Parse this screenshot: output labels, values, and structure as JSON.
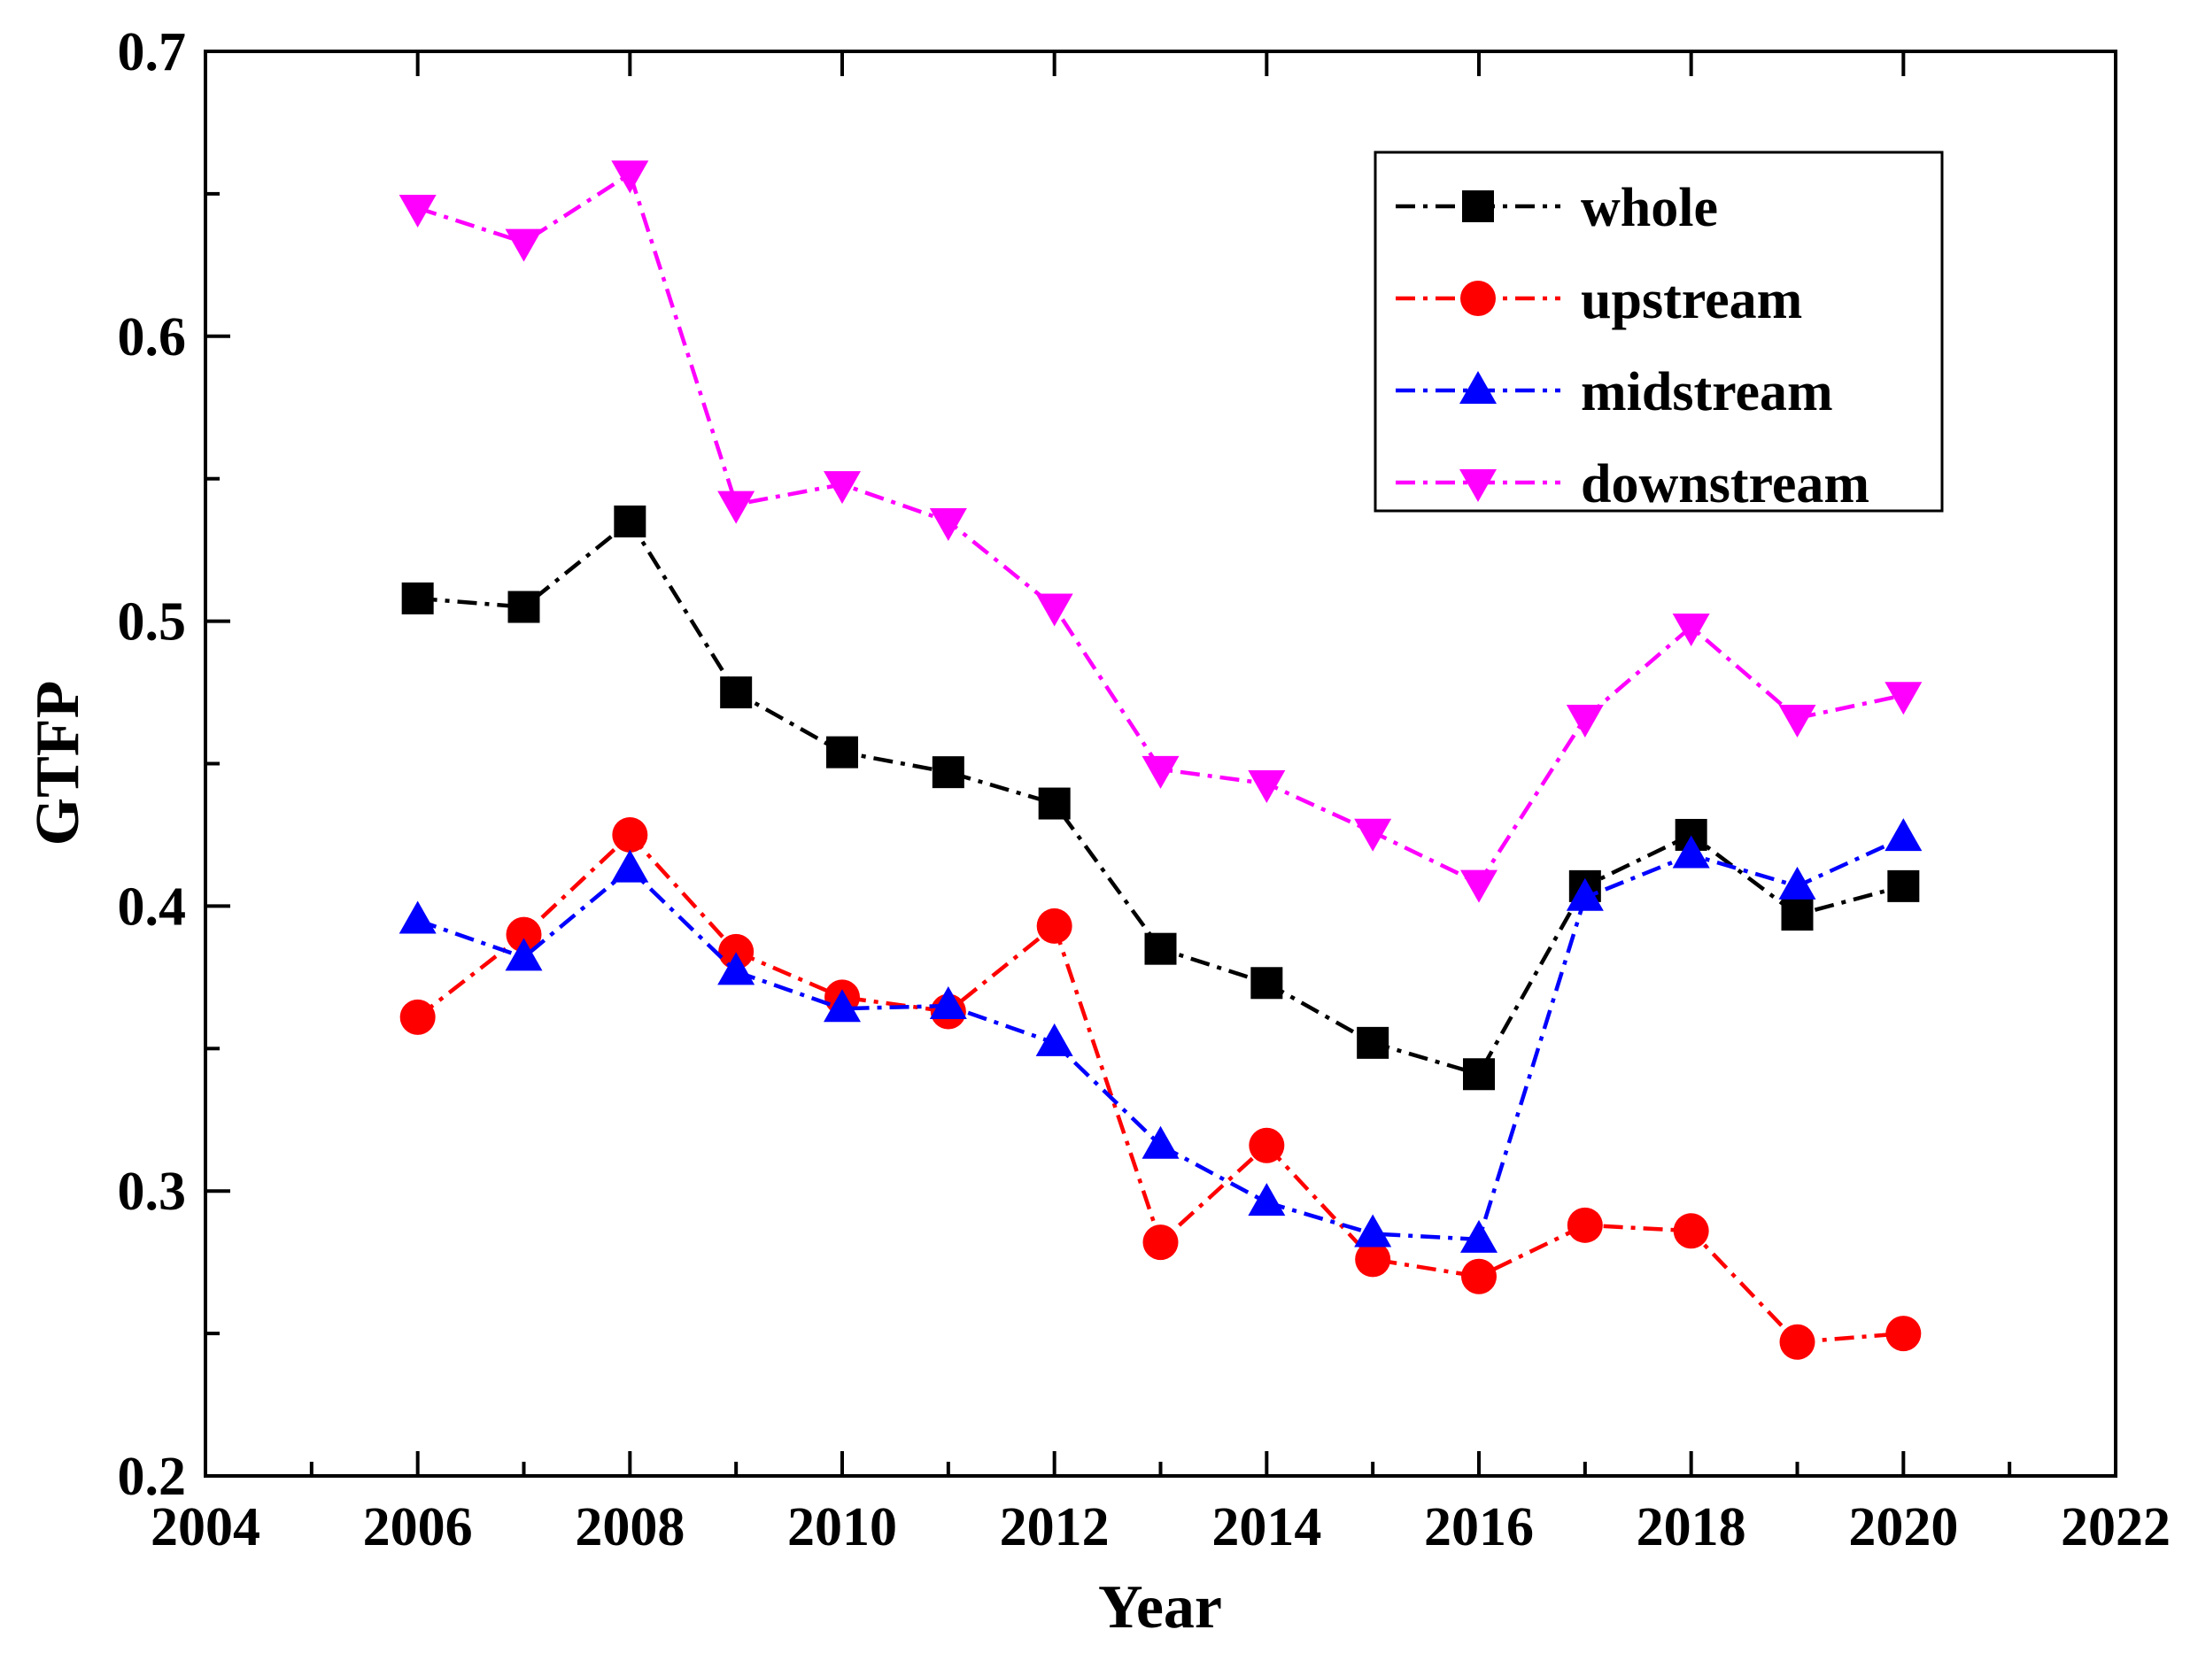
{
  "chart_data": {
    "type": "line",
    "title": "",
    "xlabel": "Year",
    "ylabel": "GTFP",
    "xlim": [
      2004,
      2022
    ],
    "ylim": [
      0.2,
      0.7
    ],
    "x_ticks": [
      "2004",
      "2006",
      "2008",
      "2010",
      "2012",
      "2014",
      "2016",
      "2018",
      "2020",
      "2022"
    ],
    "y_ticks": [
      "0.2",
      "0.3",
      "0.4",
      "0.5",
      "0.6",
      "0.7"
    ],
    "x": [
      2006,
      2007,
      2008,
      2009,
      2010,
      2011,
      2012,
      2013,
      2014,
      2015,
      2016,
      2017,
      2018,
      2019,
      2020
    ],
    "legend_position": "top-right",
    "series": [
      {
        "name": "whole",
        "color": "#000000",
        "marker": "square",
        "values": [
          0.508,
          0.505,
          0.535,
          0.475,
          0.454,
          0.447,
          0.436,
          0.385,
          0.373,
          0.352,
          0.341,
          0.407,
          0.425,
          0.397,
          0.407
        ]
      },
      {
        "name": "upstream",
        "color": "#ff0000",
        "marker": "circle",
        "values": [
          0.361,
          0.39,
          0.425,
          0.384,
          0.368,
          0.363,
          0.393,
          0.282,
          0.316,
          0.276,
          0.27,
          0.288,
          0.286,
          0.247,
          0.25
        ]
      },
      {
        "name": "midstream",
        "color": "#0000ff",
        "marker": "triangle-up",
        "values": [
          0.395,
          0.382,
          0.413,
          0.377,
          0.364,
          0.365,
          0.352,
          0.316,
          0.296,
          0.285,
          0.283,
          0.403,
          0.418,
          0.407,
          0.424
        ]
      },
      {
        "name": "downstream",
        "color": "#ff00ff",
        "marker": "triangle-down",
        "values": [
          0.645,
          0.633,
          0.657,
          0.541,
          0.548,
          0.535,
          0.505,
          0.448,
          0.443,
          0.426,
          0.408,
          0.466,
          0.498,
          0.466,
          0.474
        ]
      }
    ]
  }
}
